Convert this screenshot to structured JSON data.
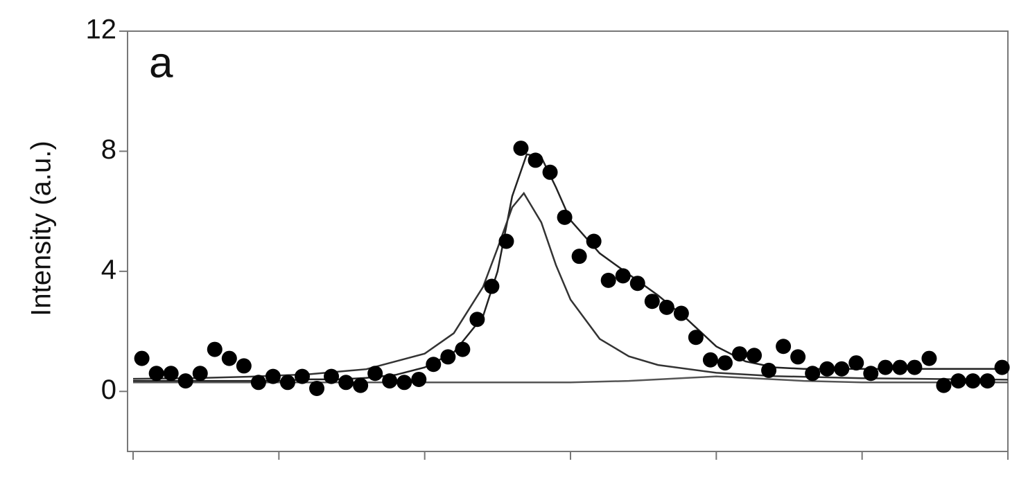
{
  "chart_data": {
    "type": "scatter",
    "panel_label": "a",
    "y_label": "Intensity (a.u.)",
    "xlim": [
      0,
      60
    ],
    "xticks": [
      0,
      10,
      20,
      30,
      40,
      50,
      60
    ],
    "ylim": [
      -2,
      12
    ],
    "yticks": [
      0,
      4,
      8,
      12
    ],
    "grid": false,
    "x": [
      0.6,
      1.6,
      2.6,
      3.6,
      4.6,
      5.6,
      6.6,
      7.6,
      8.6,
      9.6,
      10.6,
      11.6,
      12.6,
      13.6,
      14.6,
      15.6,
      16.6,
      17.6,
      18.6,
      19.6,
      20.6,
      21.6,
      22.6,
      23.6,
      24.6,
      25.6,
      26.6,
      27.6,
      28.6,
      29.6,
      30.6,
      31.6,
      32.6,
      33.6,
      34.6,
      35.6,
      36.6,
      37.6,
      38.6,
      39.6,
      40.6,
      41.6,
      42.6,
      43.6,
      44.6,
      45.6,
      46.6,
      47.6,
      48.6,
      49.6,
      50.6,
      51.6,
      52.6,
      53.6,
      54.6,
      55.6,
      56.6,
      57.6,
      58.6,
      59.6
    ],
    "values": [
      1.1,
      0.6,
      0.6,
      0.35,
      0.6,
      1.4,
      1.1,
      0.85,
      0.3,
      0.5,
      0.3,
      0.5,
      0.1,
      0.5,
      0.3,
      0.2,
      0.6,
      0.35,
      0.3,
      0.4,
      0.9,
      1.15,
      1.4,
      2.4,
      3.5,
      5.0,
      8.1,
      7.7,
      7.3,
      5.8,
      4.5,
      5.0,
      3.7,
      3.85,
      3.6,
      3.0,
      2.8,
      2.6,
      1.8,
      1.05,
      0.95,
      1.25,
      1.2,
      0.7,
      1.5,
      1.15,
      0.6,
      0.75,
      0.75,
      0.95,
      0.6,
      0.8,
      0.8,
      0.8,
      1.1,
      0.2,
      0.35,
      0.35,
      0.35,
      0.8
    ],
    "color": "#000000",
    "lines": [
      {
        "color": "#222222",
        "x": [
          0,
          2,
          4,
          6,
          8,
          10,
          12,
          14,
          16,
          18,
          20,
          22,
          24,
          25,
          26,
          27,
          28,
          29,
          30,
          32,
          34,
          36,
          38,
          40,
          42,
          44,
          46,
          50,
          55,
          60
        ],
        "values": [
          0.35,
          0.35,
          0.35,
          0.35,
          0.35,
          0.35,
          0.4,
          0.4,
          0.45,
          0.55,
          0.8,
          1.3,
          2.5,
          4.0,
          6.5,
          7.9,
          7.8,
          6.8,
          5.7,
          4.6,
          3.9,
          3.2,
          2.4,
          1.5,
          1.0,
          0.8,
          0.75,
          0.75,
          0.75,
          0.75
        ]
      },
      {
        "color": "#333333",
        "x": [
          0,
          4,
          8,
          12,
          16,
          20,
          22,
          24,
          25,
          26,
          26.8,
          28,
          29,
          30,
          32,
          34,
          36,
          40,
          44,
          50,
          60
        ],
        "values": [
          0.42,
          0.44,
          0.49,
          0.57,
          0.74,
          1.26,
          1.94,
          3.48,
          4.77,
          6.13,
          6.6,
          5.63,
          4.21,
          3.06,
          1.75,
          1.17,
          0.88,
          0.62,
          0.51,
          0.44,
          0.39
        ]
      },
      {
        "color": "#555555",
        "x": [
          0,
          30,
          34,
          38,
          40,
          42,
          46,
          50,
          60
        ],
        "values": [
          0.3,
          0.3,
          0.35,
          0.45,
          0.5,
          0.45,
          0.35,
          0.3,
          0.3
        ]
      }
    ]
  }
}
